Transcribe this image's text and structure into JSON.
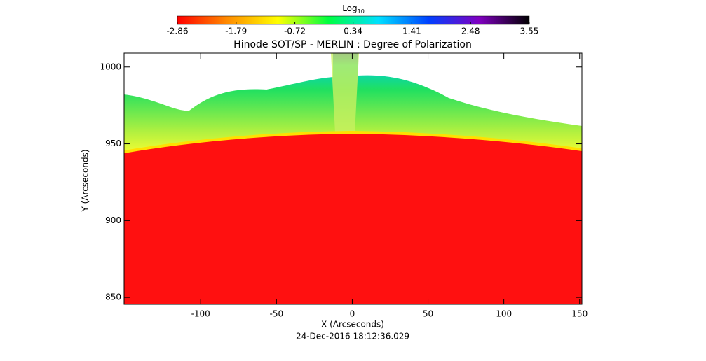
{
  "chart_data": {
    "type": "image",
    "title": "Hinode SOT/SP - MERLIN : Degree of Polarization",
    "xlabel": "X (Arcseconds)",
    "ylabel": "Y (Arcseconds)",
    "footer": "24-Dec-2016 18:12:36.029",
    "xlim": [
      -150.5,
      151.5
    ],
    "xticks": [
      -100,
      -50,
      0,
      50,
      100,
      150
    ],
    "ylim": [
      845.5,
      1009
    ],
    "yticks": [
      850,
      900,
      950,
      1000
    ],
    "colorbar": {
      "label": "Log",
      "label_sub": "10",
      "lim": [
        -2.86,
        3.55
      ],
      "ticks": [
        -2.86,
        -1.79,
        -0.72,
        0.34,
        1.41,
        2.48,
        3.55
      ],
      "colors": [
        "#ff0000",
        "#ff8c00",
        "#ffff00",
        "#00ff40",
        "#00e0ff",
        "#0040ff",
        "#8000c0",
        "#000000"
      ]
    }
  }
}
